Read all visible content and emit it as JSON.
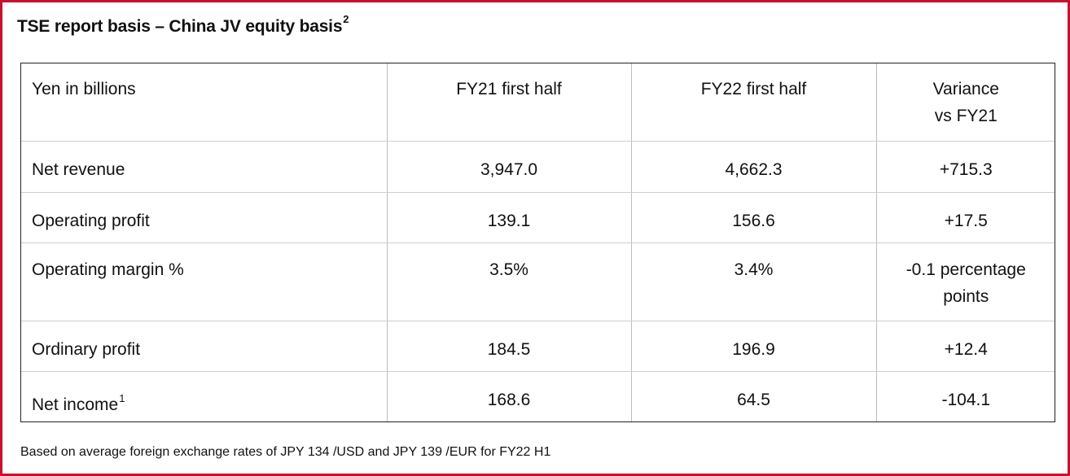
{
  "title": {
    "text": "TSE report basis – China JV equity basis",
    "sup": "2"
  },
  "table": {
    "headers": [
      {
        "line1": "Yen in billions",
        "line2": ""
      },
      {
        "line1": "FY21 first half",
        "line2": ""
      },
      {
        "line1": "FY22 first half",
        "line2": ""
      },
      {
        "line1": "Variance",
        "line2": "vs FY21"
      }
    ],
    "rows": [
      {
        "label": "Net revenue",
        "sup": "",
        "fy21": "3,947.0",
        "fy22": "4,662.3",
        "variance": "+715.3",
        "variance_line2": ""
      },
      {
        "label": "Operating profit",
        "sup": "",
        "fy21": "139.1",
        "fy22": "156.6",
        "variance": "+17.5",
        "variance_line2": ""
      },
      {
        "label": "Operating margin %",
        "sup": "",
        "fy21": "3.5%",
        "fy22": "3.4%",
        "variance": "-0.1 percentage",
        "variance_line2": "points"
      },
      {
        "label": "Ordinary profit",
        "sup": "",
        "fy21": "184.5",
        "fy22": "196.9",
        "variance": "+12.4",
        "variance_line2": ""
      },
      {
        "label": "Net income",
        "sup": "1",
        "fy21": "168.6",
        "fy22": "64.5",
        "variance": "-104.1",
        "variance_line2": ""
      }
    ]
  },
  "footnote": "Based on average foreign exchange rates of JPY 134 /USD and JPY 139 /EUR for FY22 H1",
  "colors": {
    "frame_border": "#c8102e",
    "text": "#111111",
    "grid": "#bdbdbd"
  }
}
